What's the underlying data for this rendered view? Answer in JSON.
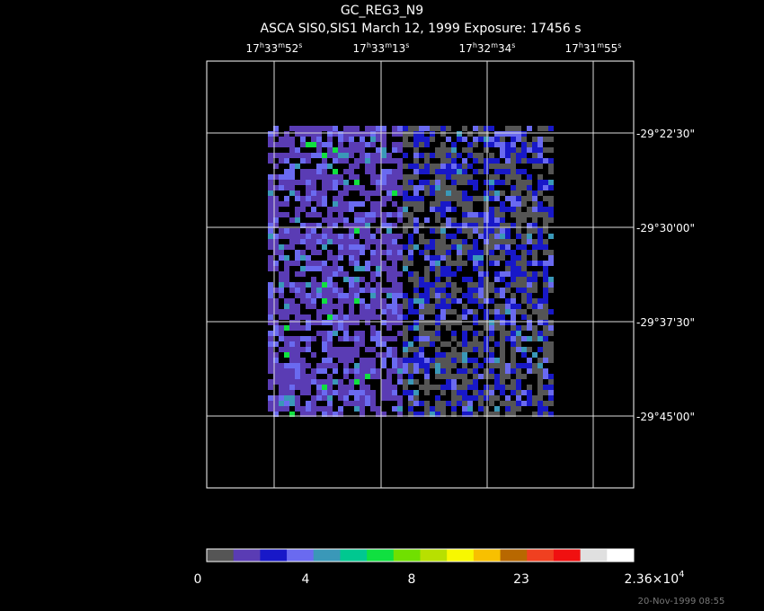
{
  "header": {
    "title": "GC_REG3_N9",
    "subtitle": "ASCA SIS0,SIS1 March 12, 1999 Exposure: 17456 s"
  },
  "ra_labels": [
    [
      "17",
      "h",
      "33",
      "m",
      "52",
      "s"
    ],
    [
      "17",
      "h",
      "33",
      "m",
      "13",
      "s"
    ],
    [
      "17",
      "h",
      "32",
      "m",
      "34",
      "s"
    ],
    [
      "17",
      "h",
      "31",
      "m",
      "55",
      "s"
    ]
  ],
  "dec_labels": [
    "-29°22'30\"",
    "-29°30'00\"",
    "-29°37'30\"",
    "-29°45'00\""
  ],
  "colorbar": {
    "colors": [
      "#555555",
      "#5a3cb4",
      "#1818c8",
      "#6a6af0",
      "#3a98b8",
      "#00c890",
      "#10e040",
      "#70e000",
      "#b8e000",
      "#f8f800",
      "#f8c000",
      "#b86800",
      "#f04020",
      "#f01010",
      "#e0e0e0",
      "#ffffff"
    ],
    "labels": [
      [
        "0"
      ],
      [
        "4"
      ],
      [
        "8"
      ],
      [
        "23"
      ],
      [
        "2.36×10",
        "4"
      ]
    ]
  },
  "timestamp": "20-Nov-1999 08:55"
}
